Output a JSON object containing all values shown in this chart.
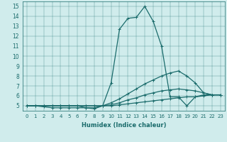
{
  "xlabel": "Humidex (Indice chaleur)",
  "bg_color": "#d0ecec",
  "line_color": "#1a6b6b",
  "xlim": [
    -0.5,
    23.5
  ],
  "ylim": [
    4.5,
    15.5
  ],
  "yticks": [
    5,
    6,
    7,
    8,
    9,
    10,
    11,
    12,
    13,
    14,
    15
  ],
  "xticks": [
    0,
    1,
    2,
    3,
    4,
    5,
    6,
    7,
    8,
    9,
    10,
    11,
    12,
    13,
    14,
    15,
    16,
    17,
    18,
    19,
    20,
    21,
    22,
    23
  ],
  "series": [
    {
      "x": [
        0,
        1,
        2,
        3,
        4,
        5,
        6,
        7,
        8,
        9,
        10,
        11,
        12,
        13,
        14,
        15,
        16,
        17,
        18,
        19,
        20,
        21,
        22,
        23
      ],
      "y": [
        5.0,
        5.0,
        5.0,
        5.0,
        5.0,
        5.0,
        5.0,
        4.8,
        4.7,
        5.0,
        7.3,
        12.7,
        13.8,
        13.9,
        15.0,
        13.5,
        11.0,
        5.9,
        5.9,
        5.0,
        5.9,
        6.1,
        6.1,
        6.1
      ]
    },
    {
      "x": [
        0,
        1,
        2,
        3,
        4,
        5,
        6,
        7,
        8,
        9,
        10,
        11,
        12,
        13,
        14,
        15,
        16,
        17,
        18,
        19,
        20,
        21,
        22,
        23
      ],
      "y": [
        5.0,
        5.0,
        4.9,
        4.8,
        4.8,
        4.8,
        4.8,
        4.8,
        4.8,
        5.0,
        5.3,
        5.7,
        6.2,
        6.7,
        7.2,
        7.6,
        8.0,
        8.3,
        8.5,
        8.0,
        7.3,
        6.3,
        6.1,
        6.1
      ]
    },
    {
      "x": [
        0,
        1,
        2,
        3,
        4,
        5,
        6,
        7,
        8,
        9,
        10,
        11,
        12,
        13,
        14,
        15,
        16,
        17,
        18,
        19,
        20,
        21,
        22,
        23
      ],
      "y": [
        5.0,
        5.0,
        5.0,
        5.0,
        5.0,
        5.0,
        5.0,
        5.0,
        5.0,
        5.0,
        5.1,
        5.3,
        5.6,
        5.8,
        6.1,
        6.3,
        6.5,
        6.6,
        6.7,
        6.6,
        6.5,
        6.3,
        6.1,
        6.1
      ]
    },
    {
      "x": [
        0,
        1,
        2,
        3,
        4,
        5,
        6,
        7,
        8,
        9,
        10,
        11,
        12,
        13,
        14,
        15,
        16,
        17,
        18,
        19,
        20,
        21,
        22,
        23
      ],
      "y": [
        5.0,
        5.0,
        5.0,
        5.0,
        5.0,
        5.0,
        5.0,
        5.0,
        5.0,
        5.0,
        5.0,
        5.1,
        5.2,
        5.3,
        5.4,
        5.5,
        5.6,
        5.7,
        5.8,
        5.9,
        5.9,
        6.0,
        6.1,
        6.1
      ]
    }
  ],
  "marker_size": 3,
  "linewidth": 0.9
}
